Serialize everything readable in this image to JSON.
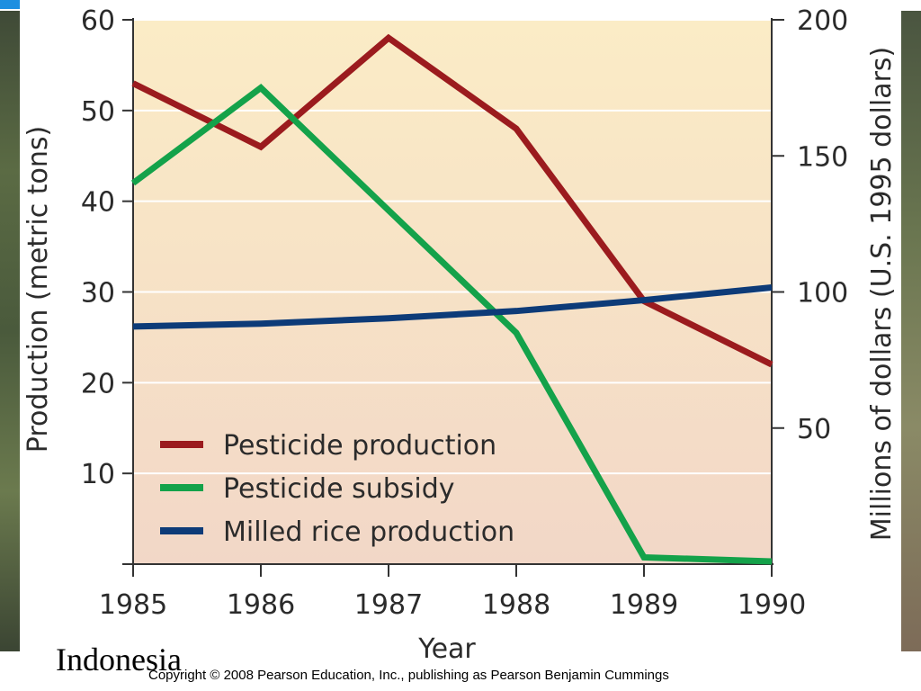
{
  "caption": {
    "region": "Indonesia",
    "copyright": "Copyright © 2008 Pearson Education, Inc., publishing as Pearson Benjamin Cummings"
  },
  "chart_data": {
    "type": "line",
    "title": "",
    "xlabel": "Year",
    "ylabel_left": "Production (metric tons)",
    "ylabel_right": "Millions of dollars (U.S. 1995 dollars)",
    "x": [
      1985,
      1986,
      1987,
      1988,
      1989,
      1990
    ],
    "xlim": [
      1985,
      1990
    ],
    "ylim_left": [
      0,
      60
    ],
    "ylim_right": [
      0,
      200
    ],
    "yticks_left": [
      "10",
      "20",
      "30",
      "40",
      "50",
      "60"
    ],
    "yticks_right": [
      "50",
      "100",
      "150",
      "200"
    ],
    "grid": true,
    "legend_position": "bottom-left",
    "series": [
      {
        "name": "Pesticide production",
        "axis": "left",
        "color": "#9b1b1e",
        "values": [
          53,
          46,
          58,
          48,
          29,
          22
        ]
      },
      {
        "name": "Pesticide subsidy",
        "axis": "right",
        "color": "#14a24a",
        "values": [
          140,
          175,
          130,
          85,
          2.5,
          1
        ]
      },
      {
        "name": "Milled rice production",
        "axis": "left",
        "color": "#0d3b78",
        "values": [
          26.2,
          26.5,
          27.1,
          27.9,
          29.1,
          30.5
        ]
      }
    ]
  }
}
